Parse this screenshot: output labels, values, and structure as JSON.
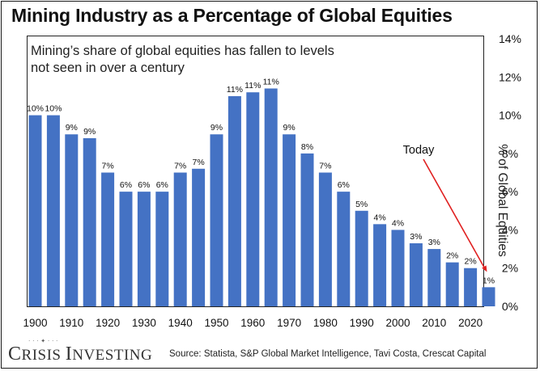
{
  "title": "Mining Industry as a Percentage of Global Equities",
  "subtitle_line1": "Mining’s share of global equities has fallen to levels",
  "subtitle_line2": "not seen in over a century",
  "annotation": "Today",
  "source": "Source: Statista, S&P Global Market Intelligence, Tavi Costa, Crescat Capital",
  "logo_text": "CRISIS INVESTING",
  "colors": {
    "bar": "#4472c4",
    "arrow": "#e02020",
    "text": "#222222"
  },
  "chart_data": {
    "type": "bar",
    "title": "Mining Industry as a Percentage of Global Equities",
    "xlabel": "",
    "ylabel": "% of Global Equities",
    "ylim": [
      0,
      14
    ],
    "yticks": [
      "0%",
      "2%",
      "4%",
      "6%",
      "8%",
      "10%",
      "12%",
      "14%"
    ],
    "xticks": [
      "1900",
      "1910",
      "1920",
      "1930",
      "1940",
      "1950",
      "1960",
      "1970",
      "1980",
      "1990",
      "2000",
      "2010",
      "2020"
    ],
    "grid": false,
    "categories": [
      1900,
      1905,
      1910,
      1915,
      1920,
      1925,
      1930,
      1935,
      1940,
      1945,
      1950,
      1955,
      1960,
      1965,
      1970,
      1975,
      1980,
      1985,
      1990,
      1995,
      2000,
      2005,
      2010,
      2015,
      2020,
      2025
    ],
    "values": [
      10,
      10,
      9,
      8.8,
      7,
      6,
      6,
      6,
      7,
      7.2,
      9,
      11,
      11.2,
      11.4,
      9,
      8,
      7,
      6,
      5,
      4.3,
      4,
      3.3,
      3,
      2.3,
      2,
      1
    ],
    "labels": [
      "10%",
      "10%",
      "9%",
      "9%",
      "7%",
      "6%",
      "6%",
      "6%",
      "7%",
      "7%",
      "9%",
      "11%",
      "11%",
      "11%",
      "9%",
      "8%",
      "7%",
      "6%",
      "5%",
      "4%",
      "4%",
      "3%",
      "3%",
      "2%",
      "2%",
      "1%"
    ]
  }
}
